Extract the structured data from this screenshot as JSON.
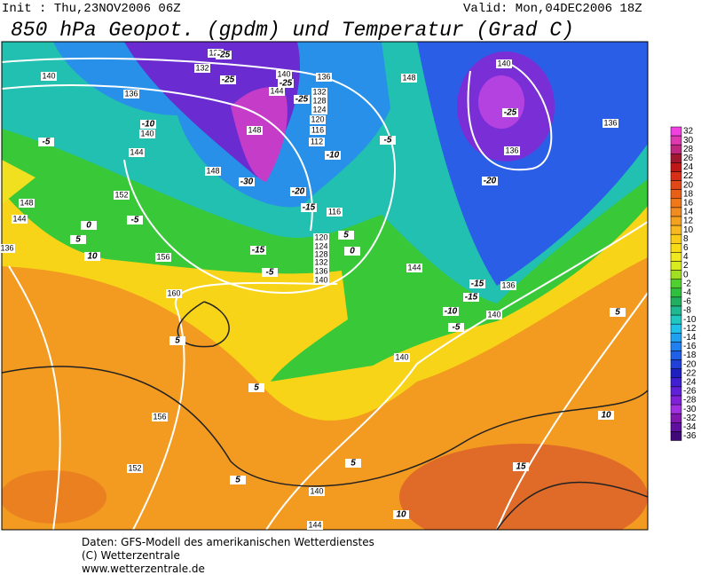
{
  "header": {
    "init": "Init : Thu,23NOV2006 06Z",
    "valid": "Valid: Mon,04DEC2006 18Z",
    "title": "850 hPa Geopot. (gpdm) und Temperatur (Grad C)"
  },
  "legend": {
    "labels": [
      "32",
      "30",
      "28",
      "26",
      "24",
      "22",
      "20",
      "18",
      "16",
      "14",
      "12",
      "10",
      "8",
      "6",
      "4",
      "2",
      "0",
      "-2",
      "-4",
      "-6",
      "-8",
      "-10",
      "-12",
      "-14",
      "-16",
      "-18",
      "-20",
      "-22",
      "-24",
      "-26",
      "-28",
      "-30",
      "-32",
      "-34",
      "-36"
    ],
    "colors": [
      "#f040e0",
      "#e038b0",
      "#c02880",
      "#a01830",
      "#c01818",
      "#d83018",
      "#e04818",
      "#e86018",
      "#f07818",
      "#f08c20",
      "#f4a020",
      "#f8b820",
      "#f8cc18",
      "#f8dc18",
      "#f0e820",
      "#d8ec20",
      "#a0e020",
      "#50d030",
      "#30c040",
      "#20b060",
      "#20b890",
      "#20c8c0",
      "#20c0e8",
      "#20a0f0",
      "#2080f0",
      "#2060e8",
      "#2040d8",
      "#2020c0",
      "#4020d0",
      "#6020d8",
      "#8020d8",
      "#a030e0",
      "#8018b0",
      "#6010a0",
      "#400878"
    ]
  },
  "contour_labels": [
    "140",
    "136",
    "132",
    "128",
    "140",
    "144",
    "136",
    "132",
    "128",
    "124",
    "120",
    "116",
    "112",
    "148",
    "140",
    "136",
    "136",
    "148",
    "148",
    "144",
    "140",
    "152",
    "148",
    "144",
    "136",
    "116",
    "120",
    "124",
    "128",
    "132",
    "136",
    "140",
    "156",
    "160",
    "144",
    "136",
    "140",
    "140",
    "156",
    "152",
    "140",
    "144"
  ],
  "isotherm_labels": [
    "-25",
    "-25",
    "-25",
    "-25",
    "-10",
    "-5",
    "-10",
    "-5",
    "-25",
    "-20",
    "-20",
    "-15",
    "-30",
    "-5",
    "0",
    "5",
    "10",
    "-15",
    "-5",
    "5",
    "0",
    "-15",
    "-15",
    "-10",
    "-5",
    "5",
    "5",
    "5",
    "10",
    "15",
    "5",
    "5",
    "10"
  ],
  "footer": {
    "line1": "Daten: GFS-Modell des amerikanischen Wetterdienstes",
    "line2": "(C) Wetterzentrale",
    "line3": "www.wetterzentrale.de"
  }
}
